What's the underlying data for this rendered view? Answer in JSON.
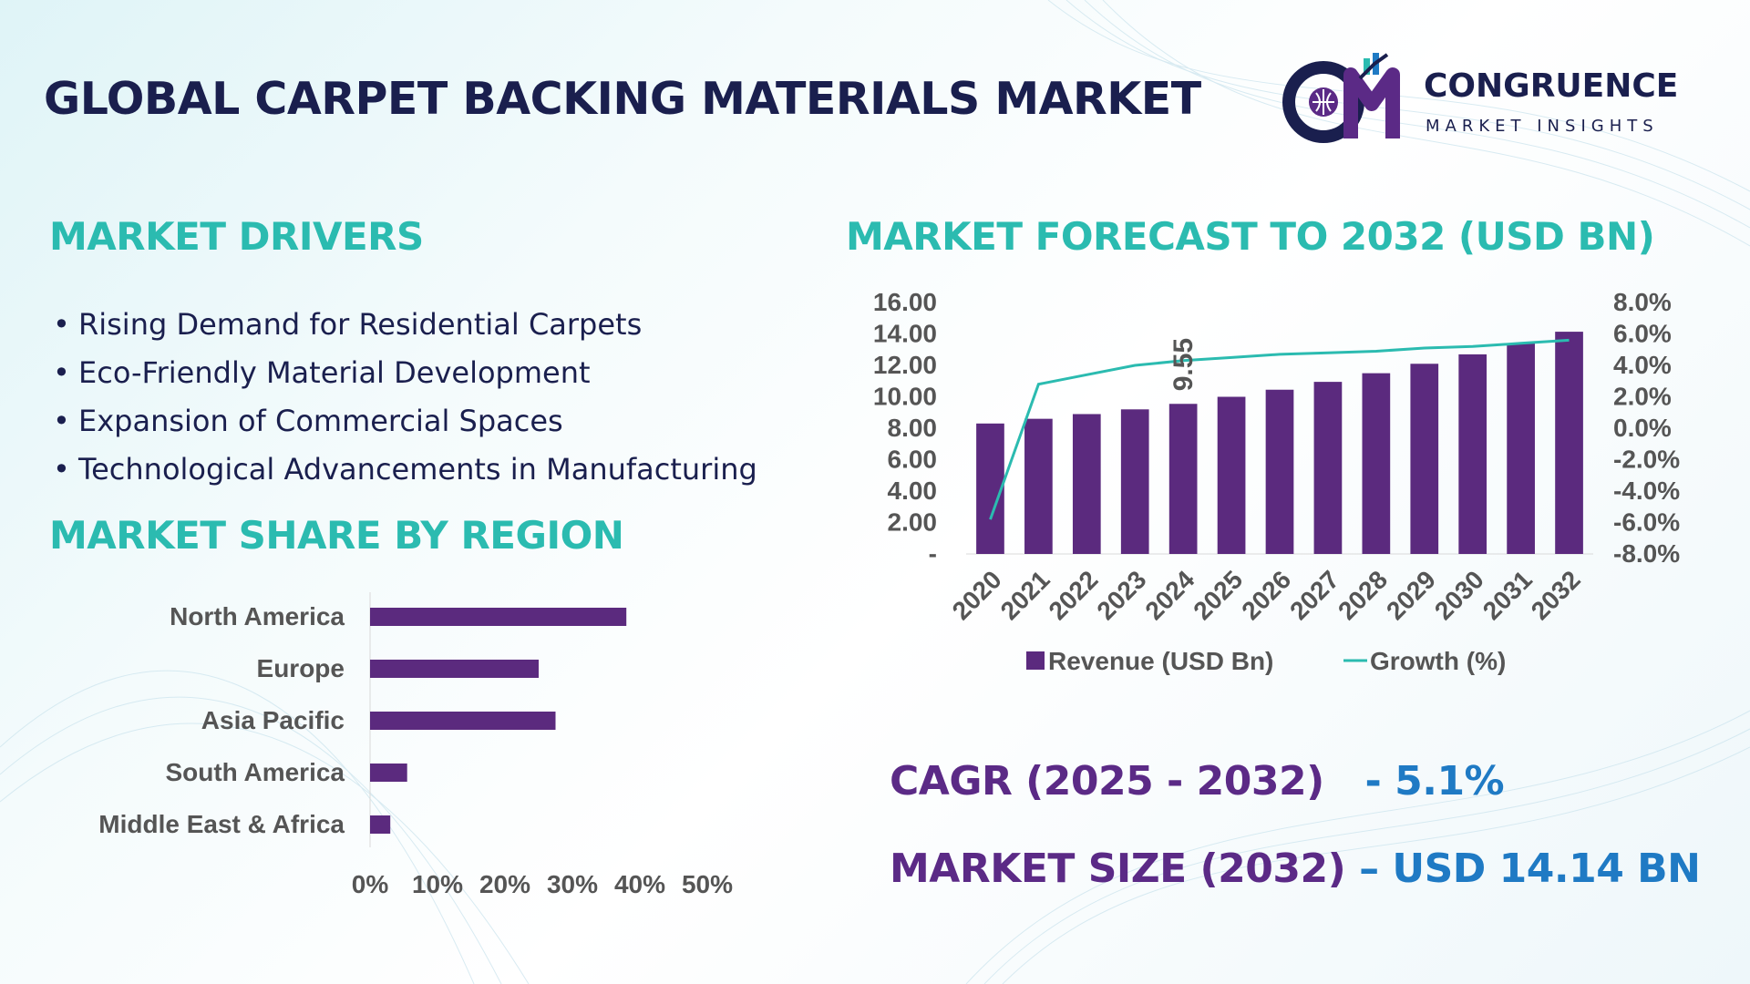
{
  "title": "GLOBAL CARPET BACKING MATERIALS MARKET",
  "logo": {
    "name": "CONGRUENCE",
    "tagline": "MARKET INSIGHTS"
  },
  "drivers": {
    "heading": "MARKET DRIVERS",
    "items": [
      "Rising Demand for Residential Carpets",
      "Eco-Friendly Material Development",
      "Expansion of Commercial Spaces",
      "Technological Advancements in Manufacturing"
    ]
  },
  "region": {
    "heading": "MARKET SHARE BY REGION"
  },
  "forecast": {
    "heading": "MARKET FORECAST TO 2032 (USD BN)"
  },
  "kpis": {
    "cagr_label": "CAGR (2025 - 2032)",
    "cagr_value": "- 5.1%",
    "size_label": "MARKET SIZE (2032)",
    "size_value": "– USD 14.14 BN"
  },
  "colors": {
    "heading": "#2bbbb0",
    "bar": "#5b2a7e",
    "line": "#2bbbb0",
    "title": "#1a1f4e",
    "kpi_label": "#5b2a86",
    "kpi_value": "#1f7ac4"
  },
  "chart_data": [
    {
      "type": "bar",
      "orientation": "horizontal",
      "categories": [
        "North America",
        "Europe",
        "Asia Pacific",
        "South America",
        "Middle East & Africa"
      ],
      "values": [
        38,
        25,
        27.5,
        5.5,
        3
      ],
      "xlim": [
        0,
        50
      ],
      "xticks": [
        "0%",
        "10%",
        "20%",
        "30%",
        "40%",
        "50%"
      ],
      "xtick_values": [
        0,
        10,
        20,
        30,
        40,
        50
      ],
      "grid": false
    },
    {
      "type": "bar",
      "categories": [
        "2020",
        "2021",
        "2022",
        "2023",
        "2024",
        "2025",
        "2026",
        "2027",
        "2028",
        "2029",
        "2030",
        "2031",
        "2032"
      ],
      "series": [
        {
          "name": "Revenue (USD Bn)",
          "type": "bar",
          "axis": "left",
          "values": [
            8.3,
            8.6,
            8.9,
            9.2,
            9.55,
            10.0,
            10.45,
            10.95,
            11.5,
            12.1,
            12.7,
            13.4,
            14.14
          ]
        },
        {
          "name": "Growth (%)",
          "type": "line",
          "axis": "right",
          "values": [
            -5.8,
            2.8,
            3.4,
            4.0,
            4.3,
            4.5,
            4.7,
            4.8,
            4.9,
            5.1,
            5.2,
            5.4,
            5.6
          ]
        }
      ],
      "data_labels": [
        {
          "category": "2024",
          "text": "9.55"
        }
      ],
      "ylim_left": [
        0,
        16
      ],
      "yticks_left": [
        "-",
        "2.00",
        "4.00",
        "6.00",
        "8.00",
        "10.00",
        "12.00",
        "14.00",
        "16.00"
      ],
      "ytick_values_left": [
        0,
        2,
        4,
        6,
        8,
        10,
        12,
        14,
        16
      ],
      "ylim_right": [
        -8,
        8
      ],
      "yticks_right": [
        "-8.0%",
        "-6.0%",
        "-4.0%",
        "-2.0%",
        "0.0%",
        "2.0%",
        "4.0%",
        "6.0%",
        "8.0%"
      ],
      "ytick_values_right": [
        -8,
        -6,
        -4,
        -2,
        0,
        2,
        4,
        6,
        8
      ],
      "legend": "bottom",
      "grid": false
    }
  ]
}
